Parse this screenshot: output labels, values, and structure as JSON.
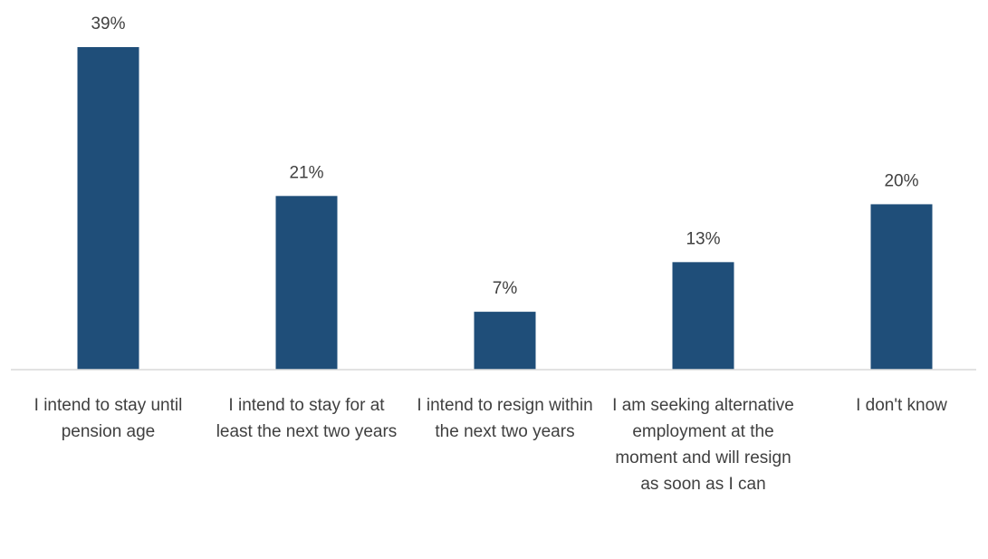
{
  "chart_data": {
    "type": "bar",
    "categories": [
      "I intend to stay until pension age",
      "I intend to stay for at least the next two years",
      "I intend to resign within the next two years",
      "I am seeking alternative employment at the moment and will resign as soon as I can",
      "I don't know"
    ],
    "values": [
      39,
      21,
      7,
      13,
      20
    ],
    "value_labels": [
      "39%",
      "21%",
      "7%",
      "13%",
      "20%"
    ],
    "color": "#1f4e79"
  }
}
